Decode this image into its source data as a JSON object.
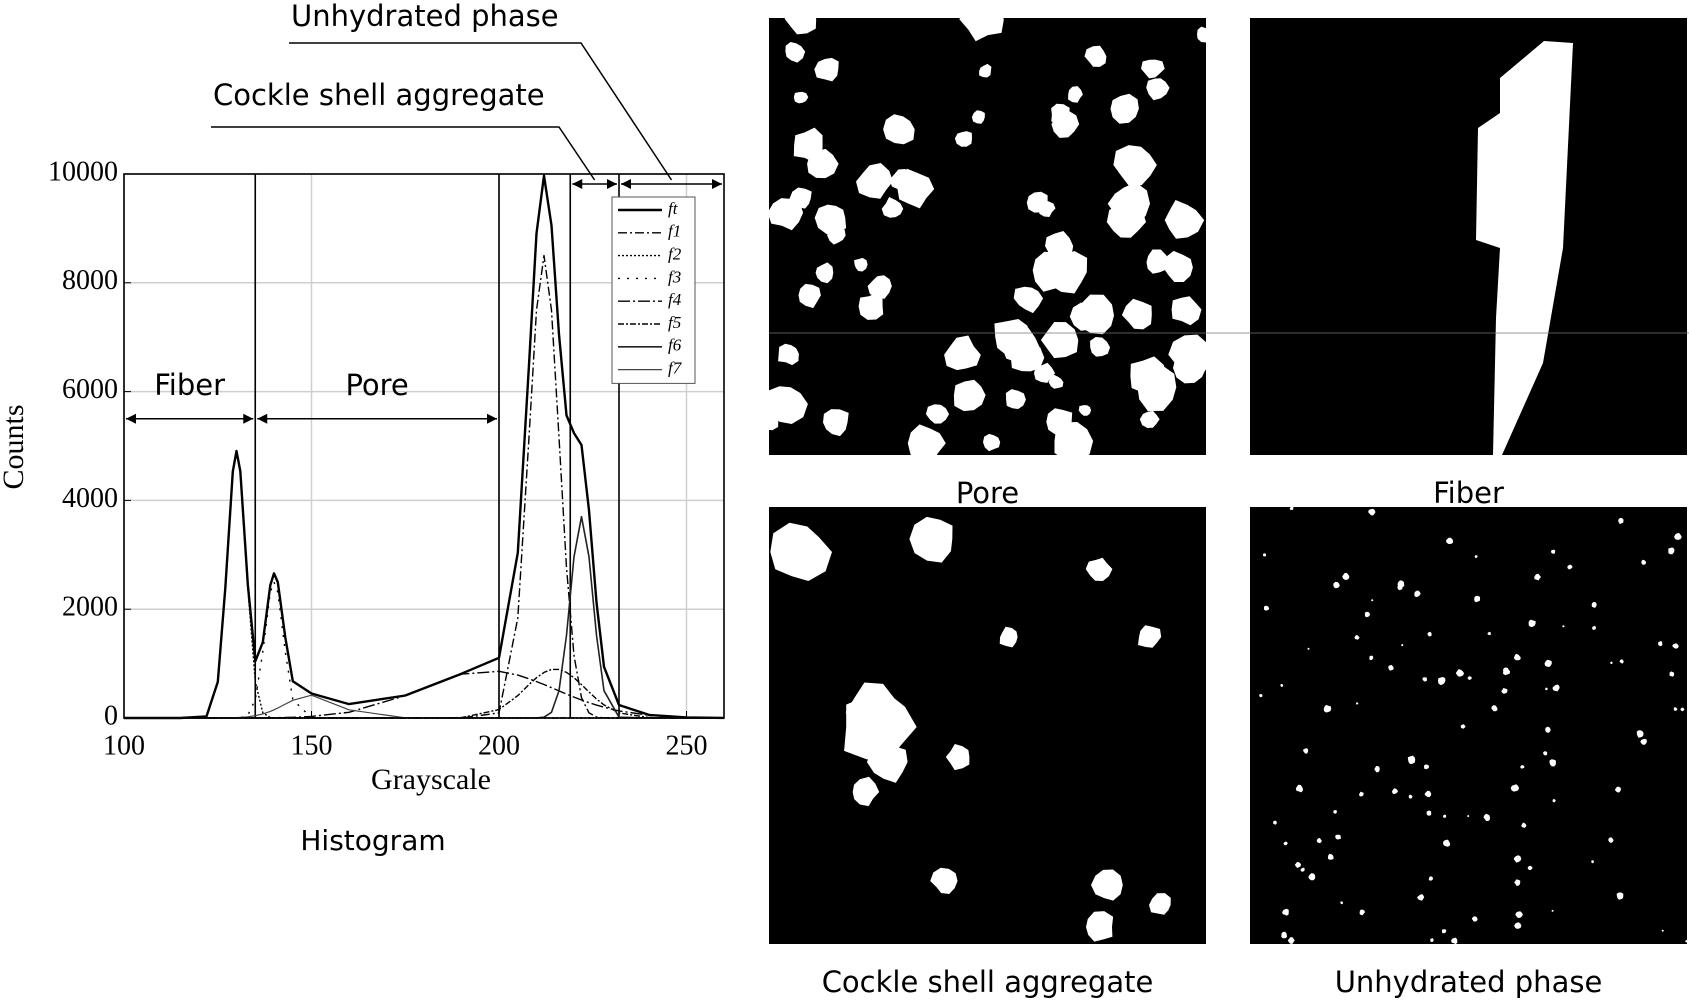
{
  "chart_data": {
    "type": "line",
    "xlabel": "Grayscale",
    "ylabel": "Counts",
    "x": [
      100,
      115,
      122,
      125,
      127,
      129,
      130,
      131,
      133,
      135,
      137,
      139,
      140,
      141,
      143,
      145,
      150,
      160,
      175,
      190,
      200,
      205,
      208,
      210,
      212,
      214,
      216,
      218,
      220,
      222,
      224,
      226,
      228,
      232,
      240,
      250,
      260
    ],
    "xlim": [
      100,
      260
    ],
    "ylim": [
      0,
      10000
    ],
    "xticks": [
      100,
      150,
      200,
      250
    ],
    "yticks": [
      0,
      2000,
      4000,
      6000,
      8000,
      10000
    ],
    "grid": true,
    "series": [
      {
        "name": "ft",
        "color": "#000000",
        "width": 2.4,
        "dash": "none",
        "values": [
          0,
          0,
          29,
          664,
          2387,
          4529,
          4908,
          4539,
          2459,
          1045,
          1392,
          2442,
          2659,
          2499,
          1482,
          676,
          450,
          256,
          413,
          814,
          1107,
          3036,
          6495,
          8908,
          9968,
          9052,
          7052,
          5563,
          5237,
          5019,
          3818,
          2127,
          942,
          239,
          57,
          11,
          2
        ]
      },
      {
        "name": "f1",
        "color": "#000000",
        "width": 1.4,
        "dash": "9,3,2,3",
        "values": [
          0,
          0,
          0,
          0,
          0,
          0,
          0,
          0,
          0,
          0,
          0,
          0,
          0,
          0,
          0,
          0,
          0,
          0,
          0,
          0,
          94,
          1836,
          5160,
          7497,
          8500,
          7497,
          5160,
          2763,
          1148,
          374,
          94,
          19,
          3,
          0,
          0,
          0,
          0
        ]
      },
      {
        "name": "f2",
        "color": "#000000",
        "width": 1.4,
        "dash": "2,2",
        "values": [
          0,
          0,
          29,
          663,
          2385,
          4523,
          4900,
          4523,
          2385,
          663,
          97,
          7,
          2,
          0,
          0,
          0,
          0,
          0,
          0,
          0,
          0,
          0,
          0,
          0,
          0,
          0,
          0,
          0,
          0,
          0,
          0,
          0,
          0,
          0,
          0,
          0,
          0
        ]
      },
      {
        "name": "f3",
        "color": "#000000",
        "width": 1.4,
        "dash": "2,7",
        "values": [
          0,
          0,
          0,
          0,
          0,
          0,
          0,
          4,
          50,
          338,
          1217,
          2308,
          2500,
          2308,
          1217,
          338,
          1,
          0,
          0,
          0,
          0,
          0,
          0,
          0,
          0,
          0,
          0,
          0,
          0,
          0,
          0,
          0,
          0,
          0,
          0,
          0,
          0
        ]
      },
      {
        "name": "f4",
        "color": "#000000",
        "width": 1.4,
        "dash": "12,3,2,3",
        "values": [
          0,
          0,
          0,
          0,
          0,
          1,
          1,
          1,
          2,
          2,
          3,
          5,
          6,
          7,
          10,
          13,
          29,
          105,
          412,
          807,
          858,
          788,
          721,
          670,
          615,
          557,
          498,
          440,
          385,
          331,
          282,
          237,
          198,
          131,
          50,
          11,
          2
        ]
      },
      {
        "name": "f5",
        "color": "#000000",
        "width": 1.4,
        "dash": "6,2,2,2",
        "values": [
          0,
          0,
          0,
          0,
          0,
          0,
          0,
          0,
          0,
          0,
          0,
          0,
          0,
          0,
          0,
          0,
          0,
          0,
          0,
          7,
          155,
          412,
          614,
          740,
          839,
          893,
          893,
          839,
          740,
          614,
          478,
          350,
          240,
          94,
          7,
          0,
          0
        ]
      },
      {
        "name": "f6",
        "color": "#222222",
        "width": 1.6,
        "dash": "none",
        "values": [
          0,
          0,
          0,
          0,
          0,
          0,
          0,
          0,
          0,
          0,
          0,
          0,
          0,
          0,
          0,
          0,
          0,
          0,
          0,
          0,
          0,
          0,
          0,
          1,
          14,
          105,
          501,
          1521,
          2964,
          3700,
          2964,
          1521,
          501,
          14,
          0,
          0,
          0
        ]
      },
      {
        "name": "f7",
        "color": "#444444",
        "width": 1.2,
        "dash": "none",
        "values": [
          0,
          0,
          0,
          1,
          2,
          5,
          7,
          11,
          22,
          42,
          75,
          122,
          151,
          184,
          255,
          325,
          420,
          151,
          1,
          0,
          0,
          0,
          0,
          0,
          0,
          0,
          0,
          0,
          0,
          0,
          0,
          0,
          0,
          0,
          0,
          0,
          0
        ]
      }
    ],
    "regions": [
      {
        "label": "Fiber",
        "range": [
          100,
          135
        ]
      },
      {
        "label": "Pore",
        "range": [
          135,
          200
        ]
      },
      {
        "label": "Cockle shell aggregate",
        "range": [
          219,
          232
        ]
      },
      {
        "label": "Unhydrated phase",
        "range": [
          232,
          260
        ]
      }
    ],
    "caption": "Histogram"
  },
  "panels": [
    "Pore",
    "Fiber",
    "Cockle shell aggregate",
    "Unhydrated phase"
  ]
}
